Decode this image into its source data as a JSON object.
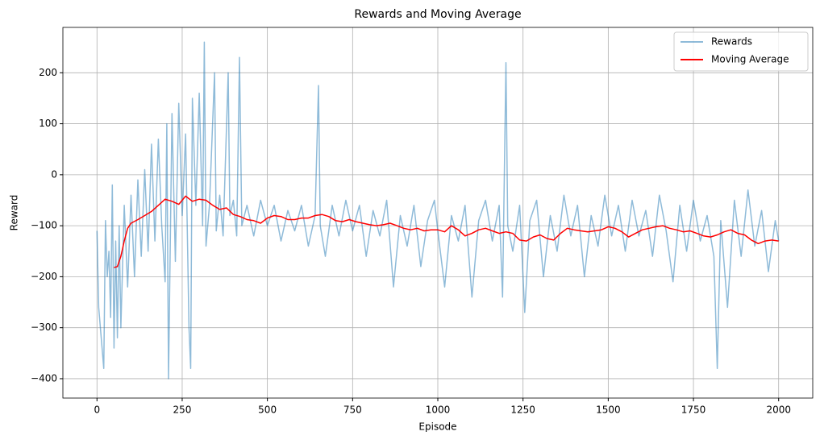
{
  "chart_data": {
    "type": "line",
    "title": "Rewards and Moving Average",
    "x_label": "Episode",
    "y_label": "Reward",
    "xlim": [
      -100,
      2100
    ],
    "ylim": [
      -438,
      289
    ],
    "xticks": [
      0,
      250,
      500,
      750,
      1000,
      1250,
      1500,
      1750,
      2000
    ],
    "yticks": [
      {
        "value": -400,
        "label": "−400"
      },
      {
        "value": -300,
        "label": "−300"
      },
      {
        "value": -200,
        "label": "−200"
      },
      {
        "value": -100,
        "label": "−100"
      },
      0,
      100,
      200
    ],
    "grid": true,
    "legend": "upper right",
    "series": [
      {
        "name": "Rewards",
        "color": "#1f77b4",
        "opacity": 0.5,
        "x": [
          0,
          5,
          10,
          15,
          20,
          25,
          30,
          35,
          40,
          45,
          50,
          55,
          60,
          65,
          70,
          80,
          90,
          100,
          110,
          120,
          130,
          140,
          150,
          160,
          170,
          180,
          190,
          200,
          205,
          210,
          220,
          230,
          240,
          250,
          260,
          270,
          275,
          280,
          290,
          300,
          310,
          315,
          320,
          330,
          345,
          350,
          360,
          370,
          385,
          390,
          400,
          410,
          418,
          425,
          440,
          460,
          480,
          500,
          520,
          540,
          560,
          580,
          600,
          620,
          640,
          650,
          655,
          670,
          690,
          710,
          730,
          750,
          770,
          790,
          810,
          830,
          850,
          870,
          890,
          910,
          930,
          950,
          970,
          990,
          1000,
          1020,
          1040,
          1060,
          1080,
          1100,
          1120,
          1140,
          1160,
          1180,
          1190,
          1200,
          1205,
          1220,
          1240,
          1255,
          1270,
          1290,
          1310,
          1330,
          1350,
          1370,
          1390,
          1410,
          1430,
          1450,
          1470,
          1490,
          1510,
          1530,
          1550,
          1570,
          1590,
          1610,
          1630,
          1650,
          1670,
          1690,
          1710,
          1730,
          1750,
          1770,
          1790,
          1810,
          1820,
          1830,
          1850,
          1870,
          1890,
          1910,
          1930,
          1950,
          1970,
          1990,
          2000
        ],
        "values": [
          -110,
          -260,
          -300,
          -340,
          -380,
          -90,
          -200,
          -150,
          -280,
          -20,
          -340,
          -130,
          -320,
          -100,
          -300,
          -60,
          -220,
          -40,
          -200,
          -10,
          -160,
          10,
          -150,
          60,
          -130,
          70,
          -100,
          -210,
          100,
          -400,
          120,
          -170,
          140,
          -80,
          80,
          -300,
          -380,
          150,
          -60,
          160,
          -100,
          260,
          -140,
          -60,
          200,
          -110,
          -40,
          -120,
          200,
          -80,
          -50,
          -120,
          230,
          -100,
          -60,
          -120,
          -50,
          -100,
          -60,
          -130,
          -70,
          -110,
          -60,
          -140,
          -80,
          175,
          -100,
          -160,
          -60,
          -120,
          -50,
          -110,
          -60,
          -160,
          -70,
          -120,
          -50,
          -220,
          -80,
          -140,
          -60,
          -180,
          -90,
          -50,
          -110,
          -220,
          -80,
          -130,
          -60,
          -240,
          -90,
          -50,
          -130,
          -60,
          -240,
          220,
          -100,
          -150,
          -60,
          -270,
          -90,
          -50,
          -200,
          -80,
          -150,
          -40,
          -120,
          -60,
          -200,
          -80,
          -140,
          -40,
          -120,
          -60,
          -150,
          -50,
          -120,
          -70,
          -160,
          -40,
          -110,
          -210,
          -60,
          -150,
          -50,
          -130,
          -80,
          -160,
          -380,
          -90,
          -260,
          -50,
          -160,
          -30,
          -140,
          -70,
          -190,
          -90,
          -130
        ]
      },
      {
        "name": "Moving Average",
        "color": "#ff0000",
        "opacity": 1,
        "x": [
          50,
          60,
          70,
          80,
          90,
          100,
          120,
          140,
          160,
          180,
          200,
          220,
          240,
          260,
          280,
          300,
          320,
          340,
          360,
          380,
          400,
          420,
          440,
          460,
          480,
          500,
          520,
          540,
          560,
          580,
          600,
          620,
          640,
          660,
          680,
          700,
          720,
          740,
          760,
          780,
          800,
          820,
          840,
          860,
          880,
          900,
          920,
          940,
          960,
          980,
          1000,
          1020,
          1040,
          1060,
          1080,
          1100,
          1120,
          1140,
          1160,
          1180,
          1200,
          1220,
          1240,
          1260,
          1280,
          1300,
          1320,
          1340,
          1360,
          1380,
          1400,
          1420,
          1440,
          1460,
          1480,
          1500,
          1520,
          1540,
          1560,
          1580,
          1600,
          1620,
          1640,
          1660,
          1680,
          1700,
          1720,
          1740,
          1760,
          1780,
          1800,
          1820,
          1840,
          1860,
          1880,
          1900,
          1920,
          1940,
          1960,
          1980,
          2000
        ],
        "values": [
          -182,
          -180,
          -160,
          -130,
          -105,
          -95,
          -88,
          -80,
          -72,
          -60,
          -48,
          -52,
          -58,
          -42,
          -52,
          -48,
          -50,
          -60,
          -68,
          -65,
          -78,
          -82,
          -88,
          -90,
          -95,
          -85,
          -80,
          -82,
          -88,
          -88,
          -85,
          -85,
          -80,
          -78,
          -82,
          -90,
          -92,
          -88,
          -92,
          -95,
          -98,
          -100,
          -98,
          -95,
          -100,
          -105,
          -108,
          -105,
          -110,
          -108,
          -108,
          -112,
          -100,
          -108,
          -120,
          -115,
          -108,
          -105,
          -110,
          -115,
          -112,
          -115,
          -128,
          -130,
          -122,
          -118,
          -125,
          -128,
          -115,
          -105,
          -108,
          -110,
          -112,
          -110,
          -108,
          -102,
          -105,
          -112,
          -122,
          -115,
          -108,
          -105,
          -102,
          -100,
          -105,
          -108,
          -112,
          -110,
          -115,
          -120,
          -122,
          -118,
          -112,
          -108,
          -115,
          -118,
          -128,
          -135,
          -130,
          -128,
          -130
        ]
      }
    ]
  }
}
